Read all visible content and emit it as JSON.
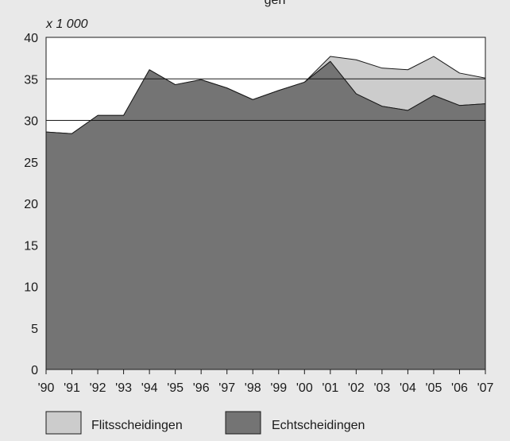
{
  "chart_data": {
    "type": "area",
    "title_partial": "gen",
    "unit_label": "x 1 000",
    "x_categories": [
      "'90",
      "'91",
      "'92",
      "'93",
      "'94",
      "'95",
      "'96",
      "'97",
      "'98",
      "'99",
      "'00",
      "'01",
      "'02",
      "'03",
      "'04",
      "'05",
      "'06",
      "'07"
    ],
    "y_ticks": [
      "0",
      "5",
      "10",
      "15",
      "20",
      "25",
      "30",
      "35",
      "40"
    ],
    "ylim": [
      0,
      40
    ],
    "grid_y": [
      30,
      35
    ],
    "series": [
      {
        "name": "Echtscheidingen",
        "color": "#747474",
        "values": [
          28.6,
          28.4,
          30.6,
          30.6,
          36.1,
          34.3,
          34.9,
          33.9,
          32.5,
          33.6,
          34.6,
          37.1,
          33.2,
          31.7,
          31.2,
          33.0,
          31.8,
          32.0
        ]
      },
      {
        "name": "Flitsscheidingen",
        "color": "#cccccc",
        "values": [
          0,
          0,
          0,
          0,
          0,
          0,
          0,
          0,
          0,
          0,
          0,
          0.6,
          4.1,
          4.6,
          4.9,
          4.7,
          3.9,
          3.1
        ]
      }
    ],
    "legend": [
      {
        "label": "Flitsscheidingen",
        "color": "#cccccc"
      },
      {
        "label": "Echtscheidingen",
        "color": "#747474"
      }
    ],
    "legend_position": "bottom-left"
  }
}
